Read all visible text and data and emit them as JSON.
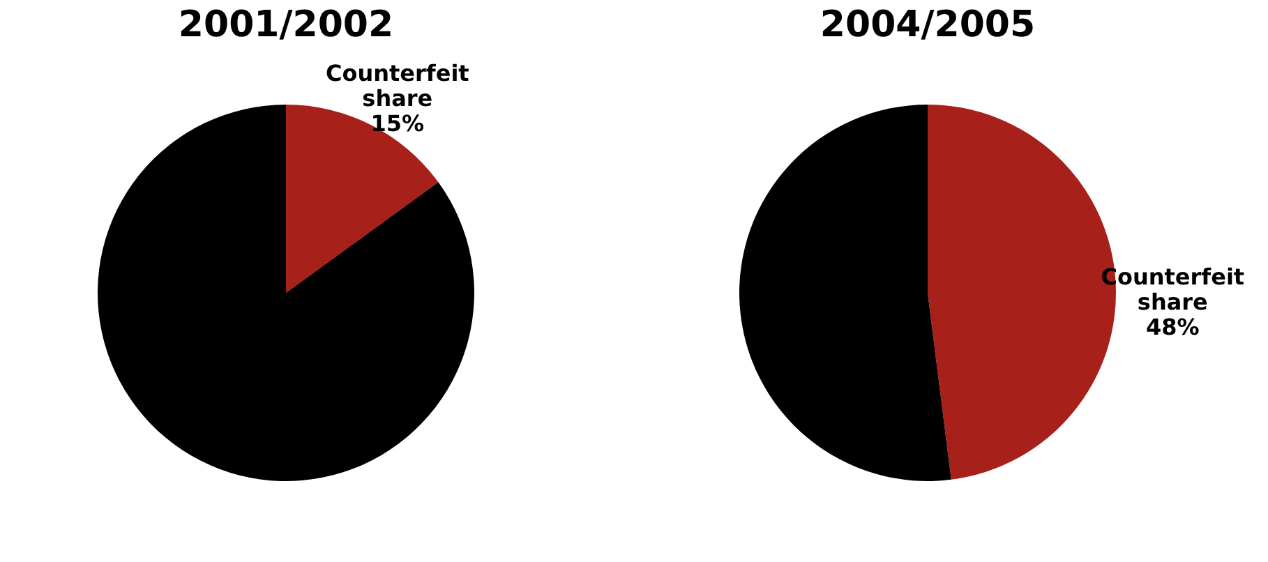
{
  "chart_data": [
    {
      "type": "pie",
      "title": "2001/2002",
      "categories": [
        "Counterfeit share",
        null
      ],
      "values": [
        15,
        85
      ],
      "colors": [
        "#a8201a",
        "#000000"
      ],
      "value_labels": [
        "15%",
        null
      ]
    },
    {
      "type": "pie",
      "title": "2004/2005",
      "categories": [
        "Counterfeit share",
        null
      ],
      "values": [
        48,
        52
      ],
      "colors": [
        "#a8201a",
        "#000000"
      ],
      "value_labels": [
        "48%",
        null
      ]
    }
  ]
}
